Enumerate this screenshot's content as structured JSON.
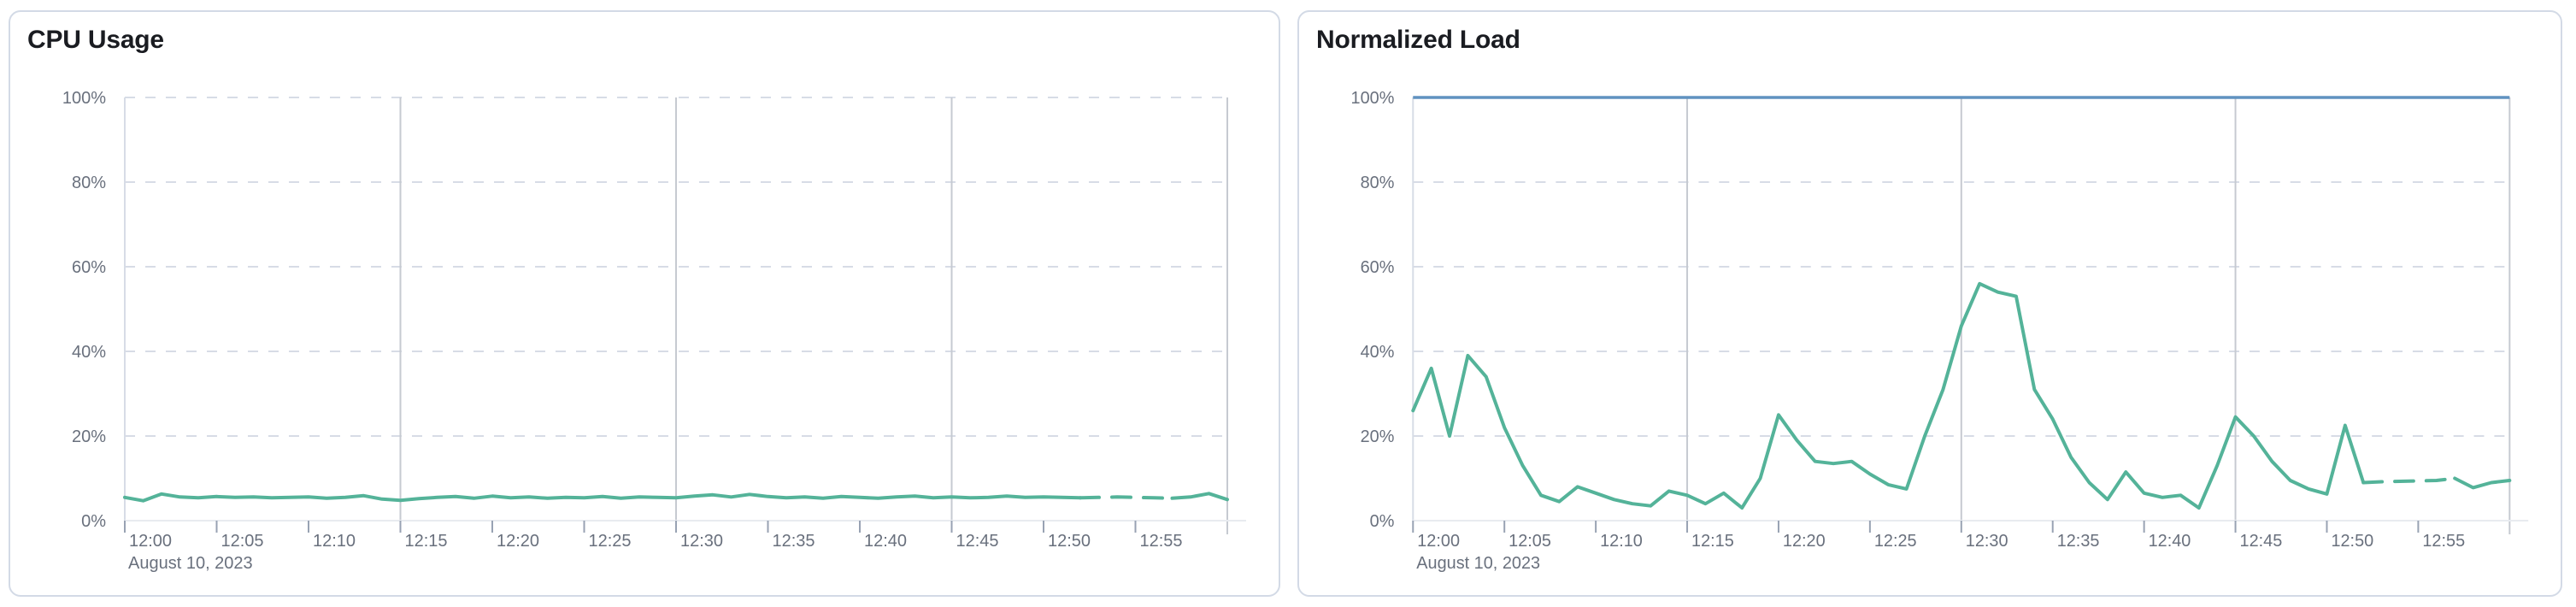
{
  "page": {
    "background": "#ffffff"
  },
  "chart_data": [
    {
      "type": "line",
      "title": "CPU Usage",
      "x_axis": {
        "tick_labels": [
          "12:00",
          "12:05",
          "12:10",
          "12:15",
          "12:20",
          "12:25",
          "12:30",
          "12:35",
          "12:40",
          "12:45",
          "12:50",
          "12:55"
        ],
        "tick_minutes": [
          0,
          5,
          10,
          15,
          20,
          25,
          30,
          35,
          40,
          45,
          50,
          55
        ],
        "range_minutes": [
          0,
          60
        ],
        "date_label": "August 10, 2023",
        "major_gridline_minutes": [
          15,
          30,
          45,
          60
        ]
      },
      "y_axis": {
        "tick_labels": [
          "0%",
          "20%",
          "40%",
          "60%",
          "80%",
          "100%"
        ],
        "tick_values": [
          0,
          20,
          40,
          60,
          80,
          100
        ],
        "ylim": [
          0,
          100
        ],
        "grid": "dashed-horizontal"
      },
      "series": [
        {
          "name": "cpu-usage",
          "color": "#54b399",
          "x_minutes": [
            0,
            1,
            2,
            3,
            4,
            5,
            6,
            7,
            8,
            9,
            10,
            11,
            12,
            13,
            14,
            15,
            16,
            17,
            18,
            19,
            20,
            21,
            22,
            23,
            24,
            25,
            26,
            27,
            28,
            29,
            30,
            31,
            32,
            33,
            34,
            35,
            36,
            37,
            38,
            39,
            40,
            41,
            42,
            43,
            44,
            45,
            46,
            47,
            48,
            49,
            50,
            51,
            52,
            53,
            54,
            55,
            56,
            57,
            58,
            59,
            60
          ],
          "values": [
            5.5,
            4.7,
            6.3,
            5.6,
            5.4,
            5.7,
            5.5,
            5.6,
            5.4,
            5.5,
            5.6,
            5.3,
            5.5,
            5.9,
            5.1,
            4.8,
            5.2,
            5.5,
            5.7,
            5.3,
            5.8,
            5.4,
            5.6,
            5.3,
            5.5,
            5.4,
            5.7,
            5.3,
            5.6,
            5.5,
            5.4,
            5.8,
            6.1,
            5.6,
            6.2,
            5.7,
            5.4,
            5.6,
            5.3,
            5.7,
            5.5,
            5.3,
            5.6,
            5.8,
            5.4,
            5.6,
            5.4,
            5.5,
            5.8,
            5.5,
            5.6,
            5.5,
            5.4,
            5.5,
            5.6,
            5.5,
            5.4,
            5.3,
            5.6,
            6.4,
            5.0
          ],
          "dashed_segment": {
            "from_index": 52,
            "to_index": 57
          }
        }
      ],
      "threshold_line": null,
      "legend": "none"
    },
    {
      "type": "line",
      "title": "Normalized Load",
      "x_axis": {
        "tick_labels": [
          "12:00",
          "12:05",
          "12:10",
          "12:15",
          "12:20",
          "12:25",
          "12:30",
          "12:35",
          "12:40",
          "12:45",
          "12:50",
          "12:55"
        ],
        "tick_minutes": [
          0,
          5,
          10,
          15,
          20,
          25,
          30,
          35,
          40,
          45,
          50,
          55
        ],
        "range_minutes": [
          0,
          60
        ],
        "date_label": "August 10, 2023",
        "major_gridline_minutes": [
          15,
          30,
          45,
          60
        ]
      },
      "y_axis": {
        "tick_labels": [
          "0%",
          "20%",
          "40%",
          "60%",
          "80%",
          "100%"
        ],
        "tick_values": [
          0,
          20,
          40,
          60,
          80,
          100
        ],
        "ylim": [
          0,
          100
        ],
        "grid": "dashed-horizontal"
      },
      "series": [
        {
          "name": "normalized-load",
          "color": "#54b399",
          "x_minutes": [
            0,
            1,
            2,
            3,
            4,
            5,
            6,
            7,
            8,
            9,
            10,
            11,
            12,
            13,
            14,
            15,
            16,
            17,
            18,
            19,
            20,
            21,
            22,
            23,
            24,
            25,
            26,
            27,
            28,
            29,
            30,
            31,
            32,
            33,
            34,
            35,
            36,
            37,
            38,
            39,
            40,
            41,
            42,
            43,
            44,
            45,
            46,
            47,
            48,
            49,
            50,
            51,
            52,
            53,
            54,
            55,
            56,
            57,
            58,
            59,
            60
          ],
          "values": [
            26,
            36,
            20,
            39,
            34,
            22,
            13,
            6,
            4.5,
            8,
            6.5,
            5,
            4,
            3.5,
            7,
            6,
            4,
            6.5,
            3,
            10,
            25,
            19,
            14,
            13.5,
            14,
            11,
            8.5,
            7.5,
            20,
            31,
            46,
            56,
            54,
            53,
            31,
            24,
            15,
            9,
            5,
            11.5,
            6.5,
            5.5,
            6,
            3,
            13,
            24.5,
            20,
            14,
            9.5,
            7.5,
            6.3,
            22.5,
            9,
            9.2,
            9.3,
            9.4,
            9.5,
            10,
            7.8,
            9,
            9.5
          ],
          "dashed_segment": {
            "from_index": 52,
            "to_index": 57
          }
        }
      ],
      "threshold_line": {
        "value": 100,
        "color": "#6092c0"
      },
      "legend": "none"
    }
  ],
  "style_colors": {
    "series_green": "#54b399",
    "threshold_blue": "#6092c0",
    "card_border": "#d3dae6",
    "title_text": "#1a1c21",
    "axis_text": "#69707d",
    "grid_dashed": "#d7dce6",
    "grid_major_vertical": "#c6cad1",
    "axis_baseline": "#e8ebf0",
    "tick_mark": "#98a2b3"
  }
}
